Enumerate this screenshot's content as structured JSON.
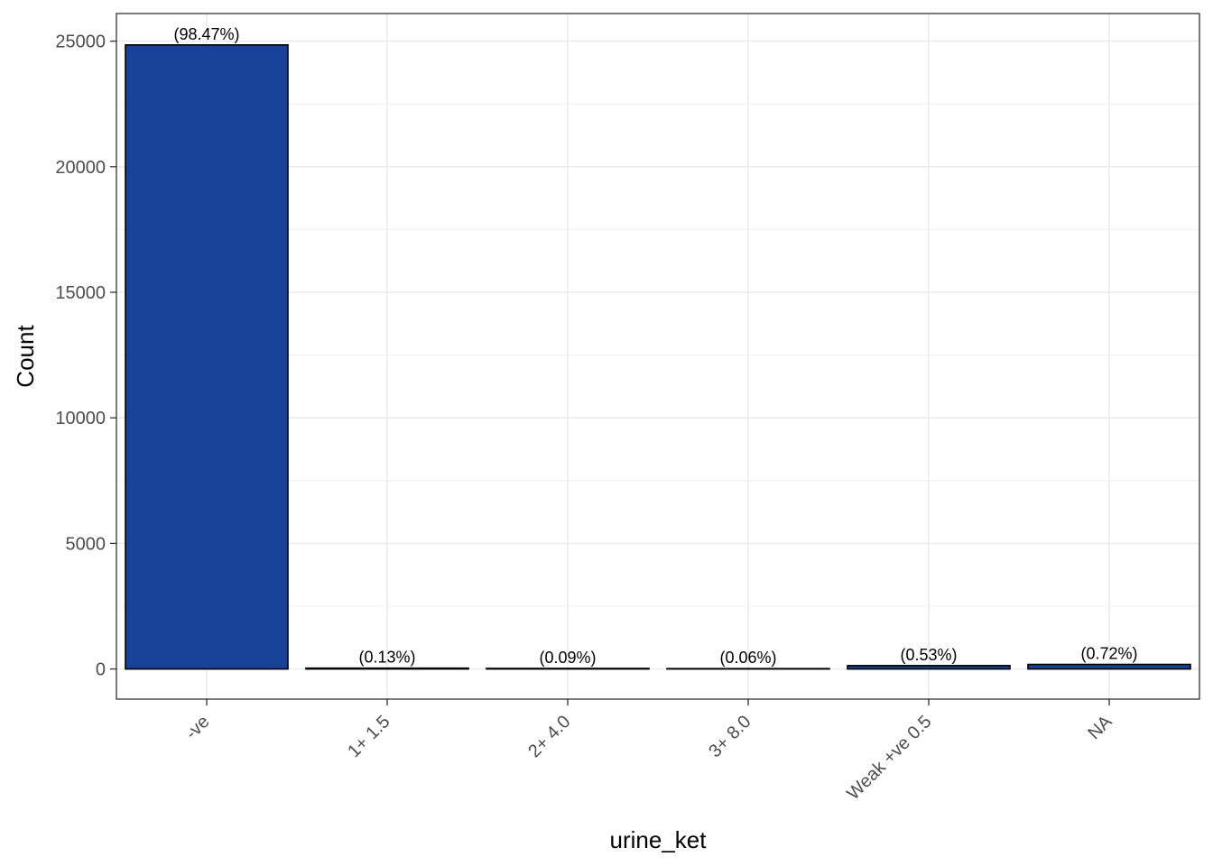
{
  "chart_data": {
    "type": "bar",
    "categories": [
      "-ve",
      "1+ 1.5",
      "2+ 4.0",
      "3+ 8.0",
      "Weak +ve 0.5",
      "NA"
    ],
    "values": [
      24850,
      33,
      23,
      15,
      134,
      182
    ],
    "data_labels": [
      "(98.47%)",
      "(0.13%)",
      "(0.09%)",
      "(0.06%)",
      "(0.53%)",
      "(0.72%)"
    ],
    "title": "",
    "xlabel": "urine_ket",
    "ylabel": "Count",
    "ylim": [
      -1200,
      26100
    ],
    "yticks": [
      0,
      5000,
      10000,
      15000,
      20000,
      25000
    ],
    "ytick_labels": [
      "0",
      "5000",
      "10000",
      "15000",
      "20000",
      "25000"
    ],
    "grid": true,
    "legend": "none",
    "bar_color": "#18419A",
    "bar_edge_color": "#000000"
  }
}
